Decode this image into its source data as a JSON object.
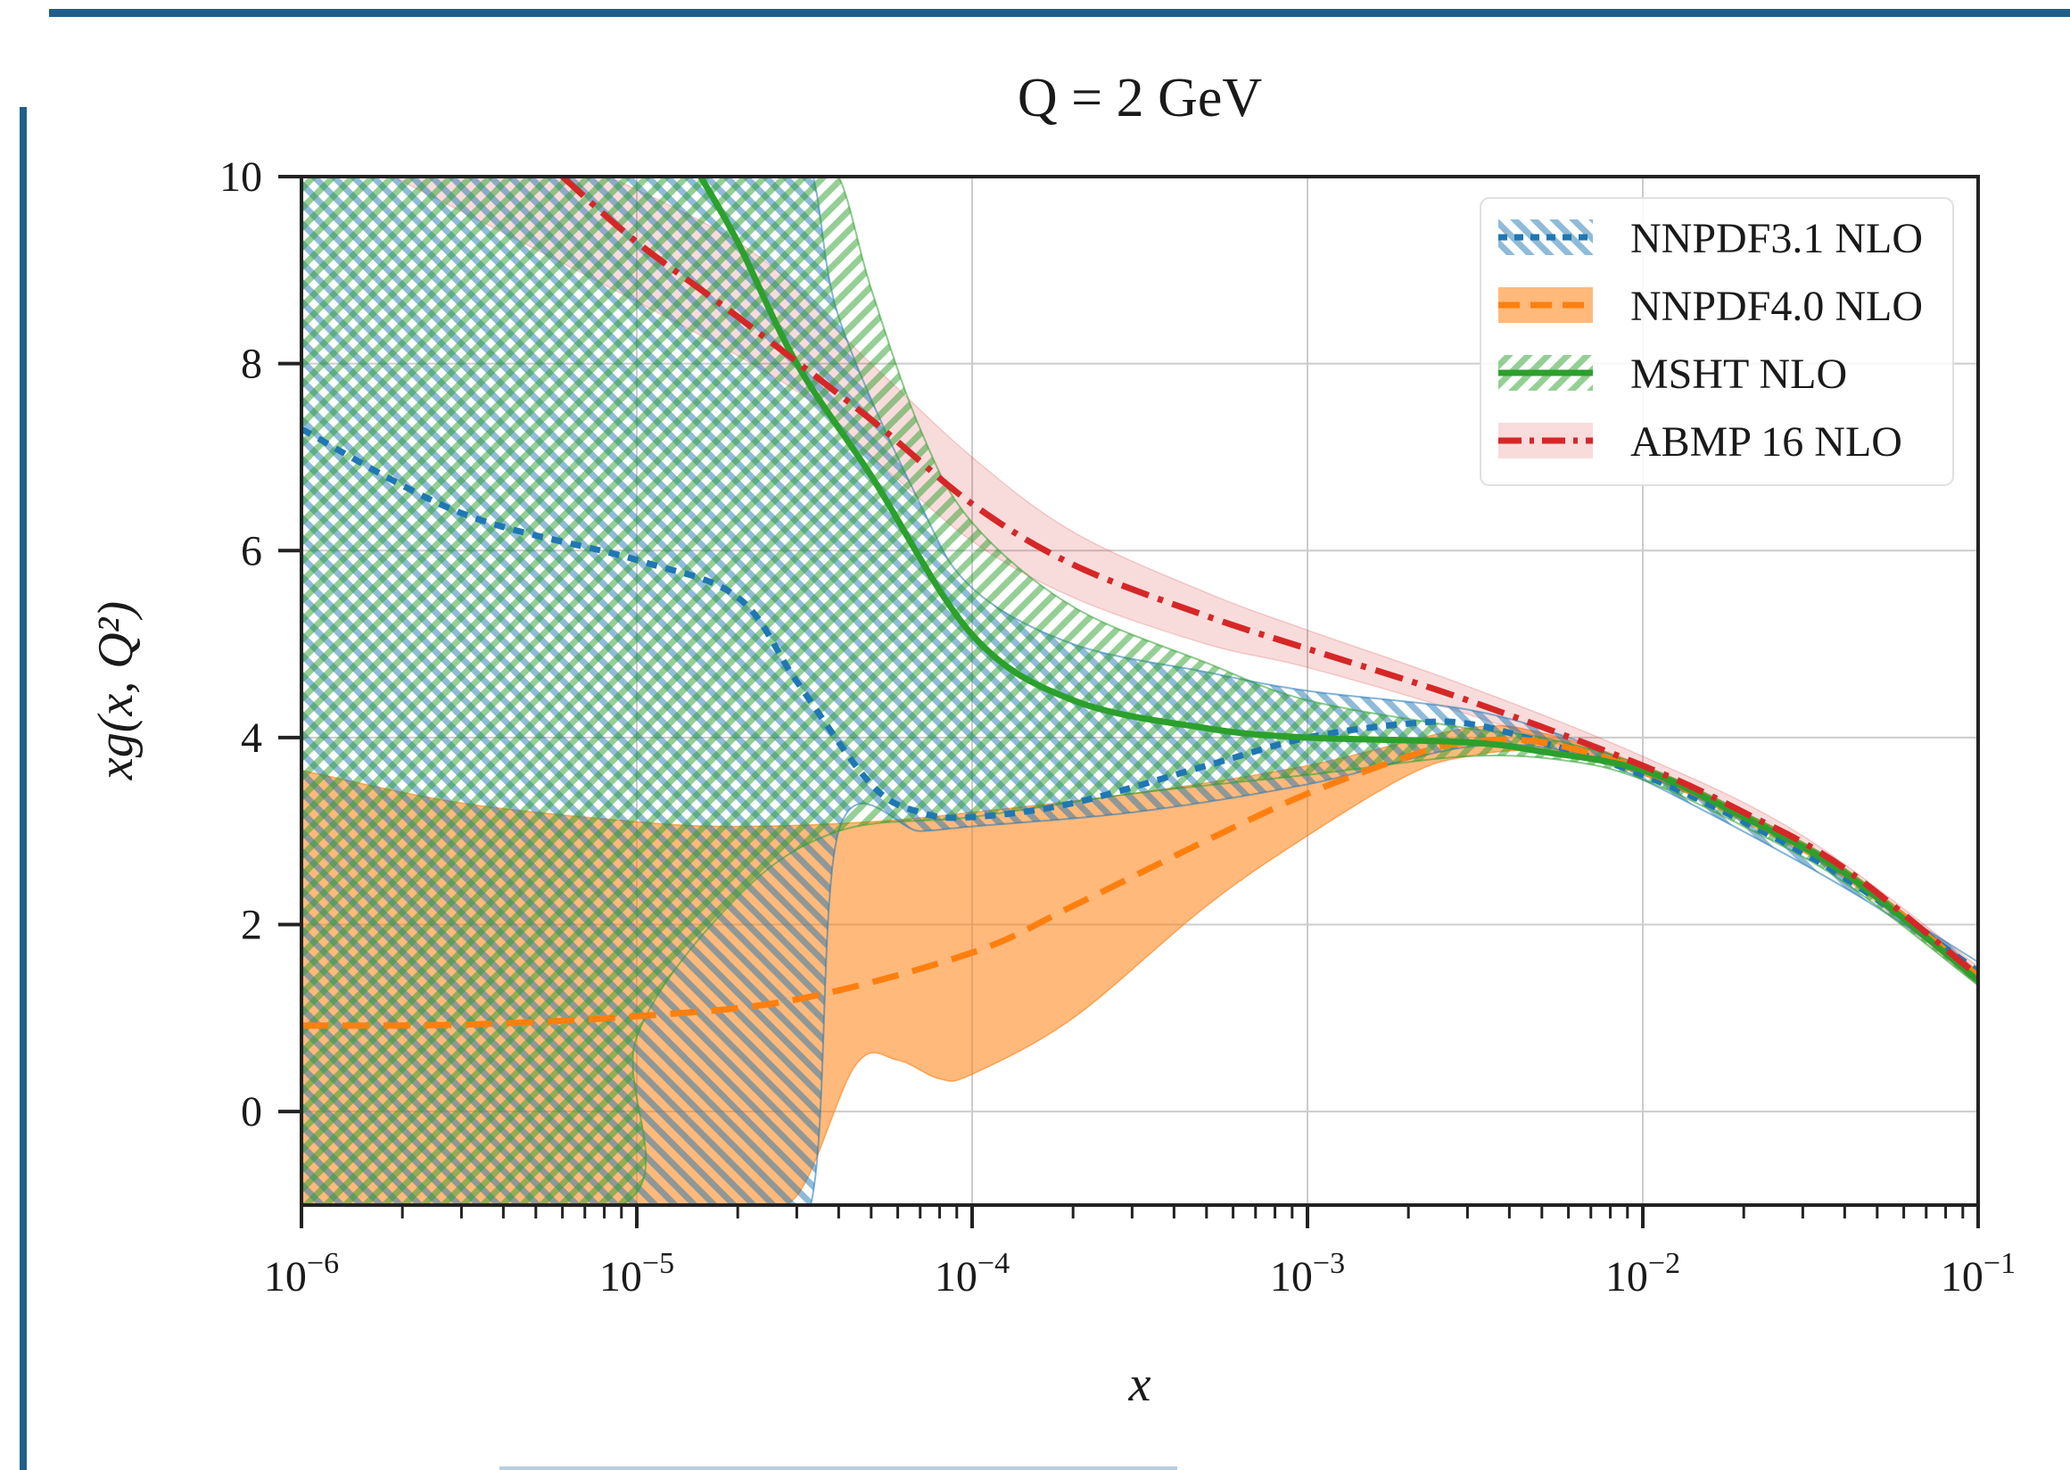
{
  "chart_data": {
    "type": "line",
    "title": "Q = 2 GeV",
    "xlabel": "x",
    "ylabel": "xg(x, Q²)",
    "x_scale": "log",
    "xlim": [
      1e-06,
      0.1
    ],
    "ylim": [
      -1,
      10
    ],
    "x_ticks": [
      1e-06,
      1e-05,
      0.0001,
      0.001,
      0.01,
      0.1
    ],
    "x_tick_labels": [
      {
        "base": "10",
        "exp": "−6"
      },
      {
        "base": "10",
        "exp": "−5"
      },
      {
        "base": "10",
        "exp": "−4"
      },
      {
        "base": "10",
        "exp": "−3"
      },
      {
        "base": "10",
        "exp": "−2"
      },
      {
        "base": "10",
        "exp": "−1"
      }
    ],
    "y_ticks": [
      0,
      2,
      4,
      6,
      8,
      10
    ],
    "y_tick_labels": [
      "0",
      "2",
      "4",
      "6",
      "8",
      "10"
    ],
    "grid": true,
    "legend_position": "top-right",
    "series": [
      {
        "name": "NNPDF3.1 NLO",
        "color": "#1f77b4",
        "line_style": "dotted",
        "band_style": "hatch-backslash",
        "central": [
          [
            1e-06,
            7.3
          ],
          [
            3e-06,
            6.4
          ],
          [
            1e-05,
            5.9
          ],
          [
            2e-05,
            5.5
          ],
          [
            3e-05,
            4.6
          ],
          [
            5e-05,
            3.5
          ],
          [
            7e-05,
            3.2
          ],
          [
            0.0001,
            3.15
          ],
          [
            0.0002,
            3.3
          ],
          [
            0.0005,
            3.7
          ],
          [
            0.001,
            4.0
          ],
          [
            0.002,
            4.15
          ],
          [
            0.003,
            4.15
          ],
          [
            0.005,
            3.95
          ],
          [
            0.01,
            3.6
          ],
          [
            0.02,
            3.1
          ],
          [
            0.04,
            2.5
          ],
          [
            0.1,
            1.5
          ]
        ],
        "upper": [
          [
            1e-06,
            10.5
          ],
          [
            2e-05,
            10.5
          ],
          [
            3.2e-05,
            10.2
          ],
          [
            4e-05,
            8.5
          ],
          [
            7e-05,
            6.5
          ],
          [
            0.0001,
            5.6
          ],
          [
            0.0002,
            5.0
          ],
          [
            0.0005,
            4.7
          ],
          [
            0.001,
            4.5
          ],
          [
            0.003,
            4.3
          ],
          [
            0.006,
            4.0
          ],
          [
            0.01,
            3.65
          ],
          [
            0.03,
            2.8
          ],
          [
            0.06,
            2.1
          ],
          [
            0.1,
            1.6
          ]
        ],
        "lower": [
          [
            1e-06,
            -1.5
          ],
          [
            2e-05,
            -1.5
          ],
          [
            3.3e-05,
            -1.0
          ],
          [
            4e-05,
            3.0
          ],
          [
            7e-05,
            3.0
          ],
          [
            0.0001,
            3.05
          ],
          [
            0.0003,
            3.2
          ],
          [
            0.001,
            3.5
          ],
          [
            0.003,
            3.9
          ],
          [
            0.006,
            3.85
          ],
          [
            0.01,
            3.55
          ],
          [
            0.03,
            2.65
          ],
          [
            0.06,
            2.0
          ],
          [
            0.1,
            1.4
          ]
        ]
      },
      {
        "name": "NNPDF4.0 NLO",
        "color": "#ff7f0e",
        "line_style": "dashed",
        "band_style": "solid-fill",
        "central": [
          [
            1e-06,
            0.92
          ],
          [
            3e-06,
            0.93
          ],
          [
            1e-05,
            1.02
          ],
          [
            3e-05,
            1.2
          ],
          [
            0.0001,
            1.7
          ],
          [
            0.0002,
            2.2
          ],
          [
            0.0005,
            2.9
          ],
          [
            0.001,
            3.4
          ],
          [
            0.002,
            3.8
          ],
          [
            0.003,
            3.95
          ],
          [
            0.005,
            3.95
          ],
          [
            0.01,
            3.65
          ],
          [
            0.02,
            3.15
          ],
          [
            0.04,
            2.55
          ],
          [
            0.1,
            1.45
          ]
        ],
        "upper": [
          [
            1e-06,
            3.65
          ],
          [
            3e-06,
            3.3
          ],
          [
            1e-05,
            3.1
          ],
          [
            2e-05,
            3.05
          ],
          [
            5e-05,
            3.1
          ],
          [
            0.0001,
            3.2
          ],
          [
            0.0003,
            3.4
          ],
          [
            0.001,
            3.7
          ],
          [
            0.003,
            4.1
          ],
          [
            0.005,
            4.05
          ],
          [
            0.01,
            3.7
          ],
          [
            0.02,
            3.2
          ],
          [
            0.04,
            2.6
          ],
          [
            0.1,
            1.5
          ]
        ],
        "lower": [
          [
            1e-06,
            -1.0
          ],
          [
            1e-05,
            -1.0
          ],
          [
            2e-05,
            -1.0
          ],
          [
            3e-05,
            -0.9
          ],
          [
            4.5e-05,
            0.5
          ],
          [
            6e-05,
            0.55
          ],
          [
            8e-05,
            0.35
          ],
          [
            0.0001,
            0.4
          ],
          [
            0.0002,
            1.0
          ],
          [
            0.0005,
            2.2
          ],
          [
            0.001,
            2.95
          ],
          [
            0.002,
            3.6
          ],
          [
            0.003,
            3.8
          ],
          [
            0.005,
            3.85
          ],
          [
            0.01,
            3.6
          ],
          [
            0.02,
            3.1
          ],
          [
            0.04,
            2.5
          ],
          [
            0.1,
            1.4
          ]
        ]
      },
      {
        "name": "MSHT NLO",
        "color": "#2ca02c",
        "line_style": "solid",
        "band_style": "hatch-slash",
        "central": [
          [
            1.55e-05,
            10.0
          ],
          [
            2e-05,
            9.3
          ],
          [
            3e-05,
            8.0
          ],
          [
            5e-05,
            6.8
          ],
          [
            0.0001,
            5.1
          ],
          [
            0.0002,
            4.4
          ],
          [
            0.0005,
            4.1
          ],
          [
            0.001,
            4.0
          ],
          [
            0.003,
            3.95
          ],
          [
            0.005,
            3.85
          ],
          [
            0.01,
            3.65
          ],
          [
            0.02,
            3.15
          ],
          [
            0.04,
            2.55
          ],
          [
            0.1,
            1.4
          ]
        ],
        "upper": [
          [
            1e-06,
            10.5
          ],
          [
            3e-05,
            10.5
          ],
          [
            4e-05,
            10.0
          ],
          [
            5e-05,
            8.8
          ],
          [
            7e-05,
            7.3
          ],
          [
            0.0001,
            6.3
          ],
          [
            0.0002,
            5.4
          ],
          [
            0.0005,
            4.8
          ],
          [
            0.001,
            4.4
          ],
          [
            0.003,
            4.1
          ],
          [
            0.005,
            4.0
          ],
          [
            0.01,
            3.7
          ],
          [
            0.02,
            3.2
          ],
          [
            0.04,
            2.6
          ],
          [
            0.1,
            1.45
          ]
        ],
        "lower": [
          [
            1e-06,
            -1.0
          ],
          [
            9e-06,
            -1.0
          ],
          [
            1e-05,
            0.8
          ],
          [
            2e-05,
            2.3
          ],
          [
            4e-05,
            3.0
          ],
          [
            0.0001,
            3.15
          ],
          [
            0.0003,
            3.4
          ],
          [
            0.001,
            3.6
          ],
          [
            0.003,
            3.8
          ],
          [
            0.006,
            3.75
          ],
          [
            0.01,
            3.55
          ],
          [
            0.02,
            3.05
          ],
          [
            0.04,
            2.45
          ],
          [
            0.1,
            1.35
          ]
        ]
      },
      {
        "name": "ABMP 16 NLO",
        "color": "#d62728",
        "line_style": "dashdot",
        "band_style": "solid-fill-light",
        "central": [
          [
            6e-06,
            10.0
          ],
          [
            1e-05,
            9.3
          ],
          [
            2e-05,
            8.5
          ],
          [
            5e-05,
            7.4
          ],
          [
            0.0001,
            6.5
          ],
          [
            0.0002,
            5.85
          ],
          [
            0.0005,
            5.3
          ],
          [
            0.001,
            4.95
          ],
          [
            0.003,
            4.4
          ],
          [
            0.01,
            3.7
          ],
          [
            0.02,
            3.2
          ],
          [
            0.04,
            2.6
          ],
          [
            0.1,
            1.45
          ]
        ],
        "upper": [
          [
            4e-06,
            10.5
          ],
          [
            2e-05,
            9.3
          ],
          [
            5e-05,
            8.0
          ],
          [
            0.0001,
            7.0
          ],
          [
            0.0002,
            6.2
          ],
          [
            0.0005,
            5.55
          ],
          [
            0.001,
            5.15
          ],
          [
            0.003,
            4.55
          ],
          [
            0.01,
            3.8
          ],
          [
            0.03,
            2.95
          ],
          [
            0.1,
            1.55
          ]
        ],
        "lower": [
          [
            1e-06,
            10.5
          ],
          [
            2.2e-05,
            8.0
          ],
          [
            5e-05,
            7.0
          ],
          [
            0.0001,
            6.1
          ],
          [
            0.0002,
            5.5
          ],
          [
            0.0005,
            5.0
          ],
          [
            0.001,
            4.75
          ],
          [
            0.003,
            4.25
          ],
          [
            0.01,
            3.6
          ],
          [
            0.03,
            2.8
          ],
          [
            0.1,
            1.35
          ]
        ]
      }
    ]
  }
}
